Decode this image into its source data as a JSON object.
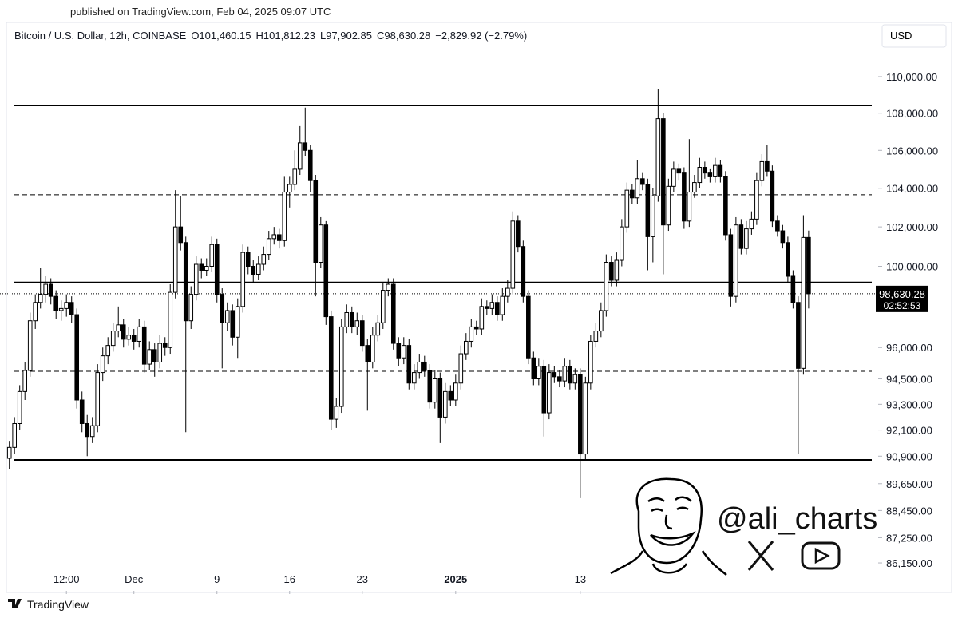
{
  "header": {
    "published": "published on TradingView.com, Feb 04, 2025 09:07 UTC"
  },
  "chart_data": {
    "type": "candlestick",
    "symbol": "Bitcoin / U.S. Dollar, 12h, COINBASE",
    "ohlc_labels": [
      "O101,460.15",
      "H101,812.23",
      "L97,902.85",
      "C98,630.28"
    ],
    "change": "−2,829.92 (−2.79%)",
    "currency": "USD",
    "log_scale": true,
    "ylim": [
      84950,
      112950
    ],
    "yticks": [
      {
        "value": 110000,
        "label": "110,000.00"
      },
      {
        "value": 108000,
        "label": "108,000.00"
      },
      {
        "value": 106000,
        "label": "106,000.00"
      },
      {
        "value": 104000,
        "label": "104,000.00"
      },
      {
        "value": 102000,
        "label": "102,000.00"
      },
      {
        "value": 100000,
        "label": "100,000.00"
      },
      {
        "value": 96000,
        "label": "96,000.00"
      },
      {
        "value": 94500,
        "label": "94,500.00"
      },
      {
        "value": 93300,
        "label": "93,300.00"
      },
      {
        "value": 92100,
        "label": "92,100.00"
      },
      {
        "value": 90900,
        "label": "90,900.00"
      },
      {
        "value": 89650,
        "label": "89,650.00"
      },
      {
        "value": 88450,
        "label": "88,450.00"
      },
      {
        "value": 87250,
        "label": "87,250.00"
      },
      {
        "value": 86150,
        "label": "86,150.00"
      }
    ],
    "xlim": [
      -1.8,
      167.4
    ],
    "xticks": [
      {
        "value": 11,
        "label": "12:00"
      },
      {
        "value": 24,
        "label": "Dec"
      },
      {
        "value": 40,
        "label": "9"
      },
      {
        "value": 54,
        "label": "16"
      },
      {
        "value": 68,
        "label": "23"
      },
      {
        "value": 86,
        "label": "2025",
        "bold": true
      },
      {
        "value": 110,
        "label": "13"
      }
    ],
    "up_color": "#ffffff",
    "down_color": "#000000",
    "outline_color": "#000000",
    "levels": [
      {
        "value": 108420,
        "style": "solid"
      },
      {
        "value": 103660,
        "style": "dashed"
      },
      {
        "value": 99190,
        "style": "solid"
      },
      {
        "value": 94860,
        "style": "dashed"
      },
      {
        "value": 90730,
        "style": "solid"
      }
    ],
    "last_price": {
      "value": 98630.28,
      "label": "98,630.28"
    },
    "countdown": "02:52:53",
    "candles": [
      [
        90800,
        91600,
        90300,
        91300
      ],
      [
        91300,
        92700,
        91000,
        92400
      ],
      [
        92400,
        94200,
        92100,
        93900
      ],
      [
        93900,
        95300,
        93500,
        94900
      ],
      [
        94900,
        97700,
        94600,
        97300
      ],
      [
        97300,
        98600,
        96900,
        98200
      ],
      [
        98200,
        99900,
        97900,
        98600
      ],
      [
        98600,
        99500,
        98200,
        99100
      ],
      [
        99100,
        99400,
        98100,
        98500
      ],
      [
        98500,
        98800,
        97400,
        97800
      ],
      [
        97800,
        98300,
        97300,
        97900
      ],
      [
        97900,
        98600,
        97500,
        98200
      ],
      [
        98200,
        98500,
        97200,
        97600
      ],
      [
        97600,
        97900,
        93100,
        93500
      ],
      [
        93500,
        93900,
        92000,
        92400
      ],
      [
        92400,
        92800,
        90900,
        91800
      ],
      [
        91800,
        92700,
        91500,
        92300
      ],
      [
        92300,
        95200,
        92000,
        94800
      ],
      [
        94800,
        96000,
        94400,
        95600
      ],
      [
        95600,
        96500,
        95200,
        96100
      ],
      [
        96100,
        97200,
        95800,
        96800
      ],
      [
        96800,
        98000,
        96500,
        97100
      ],
      [
        97100,
        97400,
        96000,
        96400
      ],
      [
        96400,
        97000,
        96100,
        96600
      ],
      [
        96600,
        96900,
        95900,
        96300
      ],
      [
        96300,
        97400,
        96000,
        97000
      ],
      [
        97000,
        97300,
        94800,
        95200
      ],
      [
        95200,
        96300,
        94900,
        95900
      ],
      [
        95900,
        96200,
        94600,
        95300
      ],
      [
        95300,
        96600,
        95000,
        96200
      ],
      [
        96200,
        96500,
        95600,
        96000
      ],
      [
        96000,
        99100,
        95700,
        98700
      ],
      [
        98700,
        103900,
        98400,
        102000
      ],
      [
        102000,
        103600,
        100800,
        101200
      ],
      [
        101200,
        101500,
        92000,
        97300
      ],
      [
        97300,
        99000,
        96900,
        98600
      ],
      [
        98600,
        100500,
        98300,
        100100
      ],
      [
        100100,
        100400,
        99400,
        99800
      ],
      [
        99800,
        100400,
        99500,
        100000
      ],
      [
        100000,
        101500,
        99700,
        101100
      ],
      [
        101100,
        101400,
        98200,
        98600
      ],
      [
        98600,
        98900,
        95000,
        97200
      ],
      [
        97200,
        98200,
        96800,
        97800
      ],
      [
        97800,
        98100,
        96100,
        96500
      ],
      [
        96500,
        98400,
        95500,
        98000
      ],
      [
        98000,
        101100,
        97700,
        100700
      ],
      [
        100700,
        101000,
        99600,
        100000
      ],
      [
        100000,
        100300,
        99200,
        99600
      ],
      [
        99600,
        100500,
        99300,
        100100
      ],
      [
        100100,
        101000,
        99800,
        100600
      ],
      [
        100600,
        101800,
        100300,
        101400
      ],
      [
        101400,
        102000,
        101100,
        101600
      ],
      [
        101600,
        101900,
        100900,
        101300
      ],
      [
        101300,
        104600,
        101000,
        103800
      ],
      [
        103800,
        104600,
        103000,
        104200
      ],
      [
        104200,
        106000,
        103900,
        105000
      ],
      [
        105000,
        107300,
        104700,
        106400
      ],
      [
        106400,
        108300,
        105700,
        106000
      ],
      [
        106000,
        106300,
        103800,
        104400
      ],
      [
        104400,
        104700,
        98500,
        100200
      ],
      [
        100200,
        102500,
        99900,
        102100
      ],
      [
        102100,
        102300,
        97100,
        97500
      ],
      [
        97500,
        97800,
        92100,
        92600
      ],
      [
        92600,
        93600,
        92200,
        93200
      ],
      [
        93200,
        97400,
        92900,
        97000
      ],
      [
        97000,
        98100,
        96700,
        97700
      ],
      [
        97700,
        98000,
        96700,
        97000
      ],
      [
        97000,
        97700,
        96600,
        97300
      ],
      [
        97300,
        97600,
        95800,
        96100
      ],
      [
        96100,
        96400,
        93000,
        95300
      ],
      [
        95300,
        97000,
        95000,
        96600
      ],
      [
        96600,
        97600,
        96300,
        97200
      ],
      [
        97200,
        99200,
        96900,
        98800
      ],
      [
        98800,
        99400,
        98500,
        99100
      ],
      [
        99100,
        99400,
        95900,
        96200
      ],
      [
        96200,
        96500,
        95100,
        95500
      ],
      [
        95500,
        96500,
        95200,
        96100
      ],
      [
        96100,
        96400,
        94000,
        94300
      ],
      [
        94300,
        95200,
        94000,
        94800
      ],
      [
        94800,
        95700,
        94500,
        95300
      ],
      [
        95300,
        95600,
        94600,
        94900
      ],
      [
        94900,
        95200,
        93100,
        93400
      ],
      [
        93400,
        94900,
        93100,
        94500
      ],
      [
        94500,
        94800,
        91500,
        92700
      ],
      [
        92700,
        94300,
        92400,
        93900
      ],
      [
        93900,
        94200,
        93200,
        93500
      ],
      [
        93500,
        94700,
        93200,
        94300
      ],
      [
        94300,
        96100,
        94000,
        95700
      ],
      [
        95700,
        96700,
        95400,
        96300
      ],
      [
        96300,
        97400,
        96000,
        97000
      ],
      [
        97000,
        97300,
        96600,
        96900
      ],
      [
        96900,
        98400,
        96600,
        98000
      ],
      [
        98000,
        98300,
        97600,
        97900
      ],
      [
        97900,
        98600,
        97600,
        98200
      ],
      [
        98200,
        98500,
        97300,
        97600
      ],
      [
        97600,
        98900,
        97300,
        98500
      ],
      [
        98500,
        99300,
        98200,
        98900
      ],
      [
        98900,
        102800,
        98600,
        102300
      ],
      [
        102300,
        102600,
        100700,
        101000
      ],
      [
        101000,
        101300,
        98200,
        98500
      ],
      [
        98500,
        98800,
        95200,
        95500
      ],
      [
        95500,
        95800,
        94200,
        94500
      ],
      [
        94500,
        95500,
        94200,
        95100
      ],
      [
        95100,
        95400,
        91800,
        92900
      ],
      [
        92900,
        95200,
        92600,
        94800
      ],
      [
        94800,
        95100,
        94300,
        94600
      ],
      [
        94600,
        94900,
        94100,
        94400
      ],
      [
        94400,
        95500,
        94100,
        95100
      ],
      [
        95100,
        95400,
        94000,
        94300
      ],
      [
        94300,
        95000,
        94000,
        94700
      ],
      [
        94700,
        95000,
        89000,
        91000
      ],
      [
        91000,
        94600,
        90700,
        94300
      ],
      [
        94300,
        96600,
        94000,
        96300
      ],
      [
        96300,
        97200,
        96000,
        96800
      ],
      [
        96800,
        98200,
        96500,
        97800
      ],
      [
        97800,
        100600,
        97500,
        100200
      ],
      [
        100200,
        100500,
        99000,
        99300
      ],
      [
        99300,
        100700,
        99000,
        100300
      ],
      [
        100300,
        102400,
        100000,
        102000
      ],
      [
        102000,
        104300,
        101700,
        103900
      ],
      [
        103900,
        104200,
        103200,
        103500
      ],
      [
        103500,
        105500,
        103200,
        104500
      ],
      [
        104500,
        104800,
        103900,
        104200
      ],
      [
        104200,
        104500,
        99800,
        101500
      ],
      [
        101500,
        104000,
        100200,
        103600
      ],
      [
        103600,
        109300,
        103300,
        107700
      ],
      [
        107700,
        108000,
        99600,
        102100
      ],
      [
        102100,
        104500,
        101800,
        104100
      ],
      [
        104100,
        105400,
        103800,
        105000
      ],
      [
        105000,
        105300,
        104400,
        104800
      ],
      [
        104800,
        105100,
        101900,
        102300
      ],
      [
        102300,
        106600,
        102000,
        103800
      ],
      [
        103800,
        104700,
        103500,
        104300
      ],
      [
        104300,
        105600,
        104000,
        105100
      ],
      [
        105100,
        105400,
        104500,
        104800
      ],
      [
        104800,
        105000,
        104300,
        104600
      ],
      [
        104600,
        105600,
        104300,
        105200
      ],
      [
        105200,
        105500,
        104300,
        104600
      ],
      [
        104600,
        104900,
        101300,
        101600
      ],
      [
        101600,
        101900,
        98000,
        98500
      ],
      [
        98500,
        102500,
        98200,
        102100
      ],
      [
        102100,
        102400,
        100600,
        100900
      ],
      [
        100900,
        102300,
        100600,
        101900
      ],
      [
        101900,
        102800,
        101600,
        102400
      ],
      [
        102400,
        104800,
        102100,
        104400
      ],
      [
        104400,
        105800,
        104100,
        105400
      ],
      [
        105400,
        106300,
        104600,
        104900
      ],
      [
        104900,
        105200,
        102000,
        102300
      ],
      [
        102300,
        102600,
        101500,
        101800
      ],
      [
        101800,
        102100,
        100900,
        101200
      ],
      [
        101200,
        101500,
        99200,
        99500
      ],
      [
        99500,
        99800,
        97900,
        98200
      ],
      [
        98200,
        98500,
        91000,
        95000
      ],
      [
        95000,
        102600,
        94700,
        101460.15
      ],
      [
        101460.15,
        101812.23,
        97902.85,
        98630.28
      ]
    ]
  },
  "watermark": "@ali_charts",
  "footer": "TradingView"
}
